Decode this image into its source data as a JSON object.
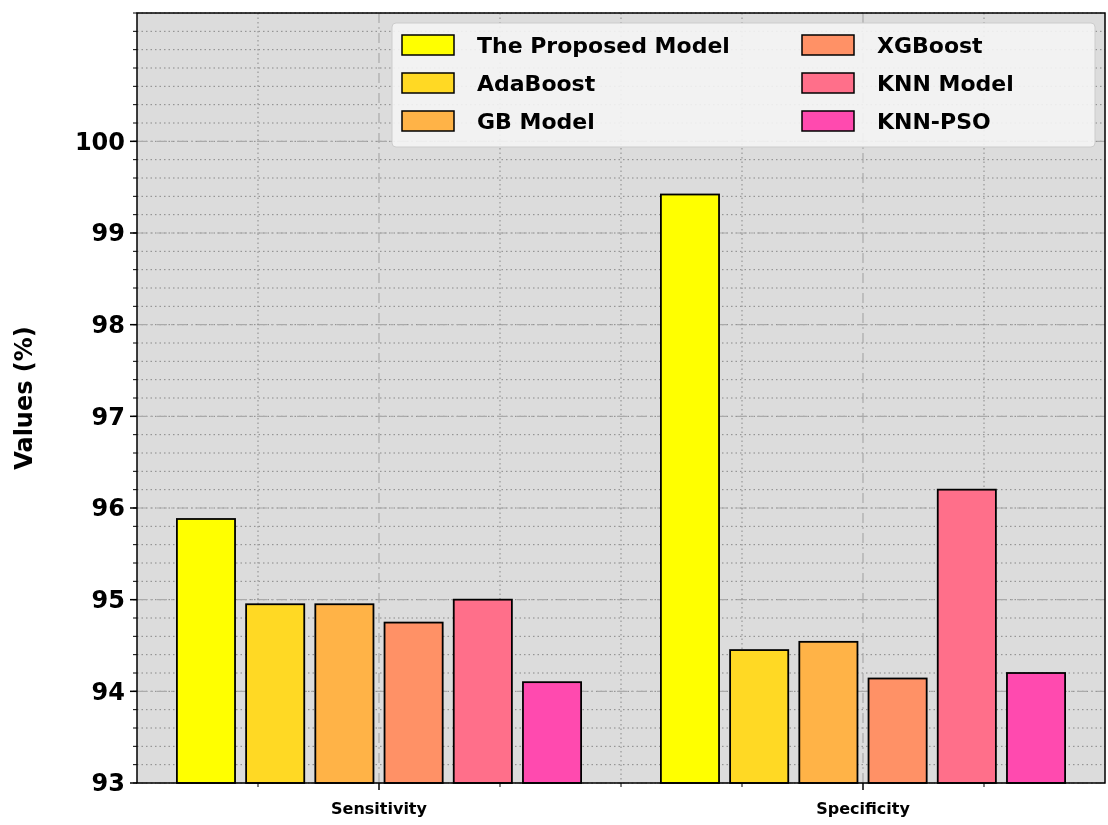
{
  "chart_data": {
    "type": "bar",
    "ylabel": "Values (%)",
    "categories": [
      "Sensitivity",
      "Specificity"
    ],
    "series": [
      {
        "name": "The Proposed Model",
        "color": "#ffff00",
        "values": [
          95.88,
          99.42
        ]
      },
      {
        "name": "AdaBoost",
        "color": "#ffd924",
        "values": [
          94.95,
          94.45
        ]
      },
      {
        "name": "GB Model",
        "color": "#ffb347",
        "values": [
          94.95,
          94.54
        ]
      },
      {
        "name": "XGBoost",
        "color": "#ff9166",
        "values": [
          94.75,
          94.14
        ]
      },
      {
        "name": "KNN Model",
        "color": "#ff6f8a",
        "values": [
          95.0,
          96.2
        ]
      },
      {
        "name": "KNN-PSO",
        "color": "#ff4aaf",
        "values": [
          94.1,
          94.2
        ]
      }
    ],
    "ylim": [
      93,
      101.4
    ],
    "yticks": [
      93,
      94,
      95,
      96,
      97,
      98,
      99,
      100
    ],
    "grid": true,
    "legend": "top right"
  }
}
